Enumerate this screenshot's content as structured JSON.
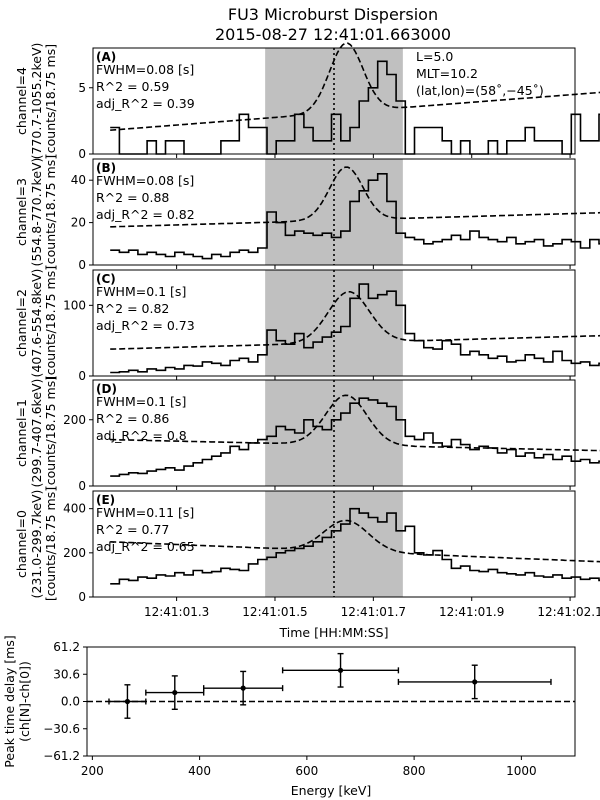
{
  "figure": {
    "title_line1": "FU3 Microburst Dispersion",
    "title_line2": "2015-08-27 12:41:01.663000"
  },
  "colors": {
    "line": "#000000",
    "shade": "#c0c0c0",
    "background": "#ffffff"
  },
  "chart_data": [
    {
      "type": "line",
      "id": "A",
      "panel_letter": "(A)",
      "ylabel": [
        "channel=4",
        "(770.7-1055.2keV)",
        "[counts/18.75 ms]"
      ],
      "annotations": [
        "FWHM=0.08 [s]",
        "R^2 = 0.59",
        "adj_R^2 = 0.39"
      ],
      "info": [
        "L=5.0",
        "MLT=10.2",
        "(lat,lon)=(58˚,−45˚)"
      ],
      "ylim": [
        0,
        8
      ],
      "yticks": [
        0,
        5
      ],
      "xlim": [
        1.13,
        2.11
      ],
      "shaded_x": [
        1.48,
        1.76
      ],
      "peak_line_x": 1.62,
      "x_start": 1.165,
      "x_step": 0.01875,
      "counts": [
        2,
        0,
        0,
        0,
        1,
        0,
        1,
        1,
        0,
        0,
        0,
        0,
        1,
        1,
        3,
        2,
        2,
        0,
        1,
        1,
        3,
        2,
        1,
        1,
        3,
        1,
        2,
        4,
        5,
        7,
        6,
        4,
        0,
        2,
        2,
        2,
        1,
        0,
        1,
        0,
        0,
        1,
        0,
        1,
        1,
        2,
        1,
        1,
        1,
        0,
        3,
        1,
        1,
        3,
        2,
        2
      ],
      "fit": {
        "a": 1.8,
        "b": 3.0,
        "amp": 5.2,
        "mu": 1.645,
        "sigma": 0.034
      }
    },
    {
      "type": "line",
      "id": "B",
      "panel_letter": "(B)",
      "ylabel": [
        "channel=3",
        "(554.8-770.7keV)",
        "[counts/18.75 ms]"
      ],
      "annotations": [
        "FWHM=0.08 [s]",
        "R^2 = 0.88",
        "adj_R^2 = 0.82"
      ],
      "info": [],
      "ylim": [
        0,
        50
      ],
      "yticks": [
        0,
        20,
        40
      ],
      "xlim": [
        1.13,
        2.11
      ],
      "shaded_x": [
        1.48,
        1.76
      ],
      "peak_line_x": 1.62,
      "x_start": 1.165,
      "x_step": 0.01875,
      "counts": [
        7,
        6,
        7,
        5,
        6,
        5,
        4,
        6,
        5,
        4,
        3,
        5,
        4,
        6,
        7,
        6,
        8,
        25,
        20,
        14,
        16,
        15,
        14,
        15,
        13,
        16,
        30,
        35,
        40,
        43,
        30,
        15,
        13,
        12,
        10,
        11,
        12,
        14,
        12,
        16,
        13,
        12,
        11,
        13,
        10,
        11,
        12,
        9,
        10,
        12,
        11,
        8,
        12,
        10,
        14,
        8
      ],
      "fit": {
        "a": 18,
        "b": 7,
        "amp": 25,
        "mu": 1.645,
        "sigma": 0.034
      }
    },
    {
      "type": "line",
      "id": "C",
      "panel_letter": "(C)",
      "ylabel": [
        "channel=2",
        "(407.6-554.8keV)",
        "[counts/18.75 ms]"
      ],
      "annotations": [
        "FWHM=0.1 [s]",
        "R^2 = 0.82",
        "adj_R^2 = 0.73"
      ],
      "info": [],
      "ylim": [
        0,
        150
      ],
      "yticks": [
        0,
        100
      ],
      "xlim": [
        1.13,
        2.11
      ],
      "shaded_x": [
        1.48,
        1.76
      ],
      "peak_line_x": 1.62,
      "x_start": 1.165,
      "x_step": 0.01875,
      "counts": [
        5,
        6,
        8,
        6,
        10,
        8,
        12,
        10,
        15,
        14,
        20,
        18,
        15,
        22,
        25,
        20,
        30,
        65,
        50,
        45,
        60,
        40,
        48,
        55,
        62,
        70,
        110,
        130,
        110,
        115,
        120,
        100,
        60,
        50,
        40,
        38,
        50,
        45,
        30,
        35,
        30,
        25,
        28,
        20,
        22,
        30,
        25,
        20,
        35,
        22,
        18,
        20,
        15,
        18,
        15,
        16
      ],
      "fit": {
        "a": 38,
        "b": 20,
        "amp": 72,
        "mu": 1.65,
        "sigma": 0.042
      }
    },
    {
      "type": "line",
      "id": "D",
      "panel_letter": "(D)",
      "ylabel": [
        "channel=1",
        "(299.7-407.6keV)",
        "[counts/18.75 ms]"
      ],
      "annotations": [
        "FWHM=0.1 [s]",
        "R^2 = 0.86",
        "adj_R^2 = 0.8"
      ],
      "info": [],
      "ylim": [
        0,
        320
      ],
      "yticks": [
        0,
        200
      ],
      "xlim": [
        1.13,
        2.11
      ],
      "shaded_x": [
        1.48,
        1.76
      ],
      "peak_line_x": 1.62,
      "x_start": 1.165,
      "x_step": 0.01875,
      "counts": [
        30,
        35,
        40,
        38,
        45,
        50,
        55,
        48,
        60,
        70,
        80,
        90,
        100,
        120,
        110,
        130,
        140,
        150,
        180,
        170,
        160,
        200,
        180,
        170,
        200,
        220,
        250,
        265,
        260,
        250,
        240,
        200,
        150,
        140,
        160,
        130,
        120,
        140,
        125,
        110,
        120,
        115,
        100,
        110,
        90,
        100,
        85,
        95,
        80,
        90,
        75,
        80,
        70,
        75,
        65,
        70
      ],
      "fit": {
        "a": 140,
        "b": -35,
        "amp": 150,
        "mu": 1.645,
        "sigma": 0.042
      }
    },
    {
      "type": "line",
      "id": "E",
      "panel_letter": "(E)",
      "ylabel": [
        "channel=0",
        "(231.0-299.7keV)",
        "[counts/18.75 ms]"
      ],
      "annotations": [
        "FWHM=0.11 [s]",
        "R^2 = 0.77",
        "adj_R^2 = 0.65"
      ],
      "info": [],
      "ylim": [
        0,
        480
      ],
      "yticks": [
        0,
        200,
        400
      ],
      "xlim": [
        1.13,
        2.11
      ],
      "shaded_x": [
        1.48,
        1.76
      ],
      "peak_line_x": 1.62,
      "x_start": 1.165,
      "x_step": 0.01875,
      "counts": [
        60,
        80,
        75,
        90,
        85,
        100,
        95,
        110,
        100,
        120,
        110,
        115,
        130,
        125,
        120,
        150,
        170,
        180,
        200,
        210,
        220,
        230,
        250,
        270,
        300,
        330,
        400,
        380,
        360,
        340,
        380,
        300,
        320,
        200,
        190,
        210,
        170,
        130,
        140,
        120,
        115,
        125,
        110,
        105,
        100,
        110,
        95,
        90,
        100,
        85,
        90,
        80,
        85,
        75,
        80,
        80
      ],
      "fit": {
        "a": 250,
        "b": -95,
        "amp": 140,
        "mu": 1.645,
        "sigma": 0.045
      }
    },
    {
      "type": "scatter",
      "id": "F",
      "xlabel": "Energy [keV]",
      "ylabel": [
        "Peak time delay [ms]",
        "(ch[N]-ch[0])"
      ],
      "xlim": [
        190,
        1100
      ],
      "ylim": [
        -61.2,
        61.2
      ],
      "xticks": [
        200,
        400,
        600,
        800,
        1000
      ],
      "yticks": [
        -61.2,
        -30.6,
        0.0,
        30.6,
        61.2
      ],
      "ytick_labels": [
        "−61.2",
        "−30.6",
        "0.0",
        "30.6",
        "61.2"
      ],
      "zero_line": true,
      "points": [
        {
          "x": 265.4,
          "y": 0.0,
          "xerr": [
            231.0,
            299.7
          ],
          "yerr": 18.75
        },
        {
          "x": 353.7,
          "y": 10.0,
          "xerr": [
            299.7,
            407.6
          ],
          "yerr": 18.75
        },
        {
          "x": 481.2,
          "y": 15.0,
          "xerr": [
            407.6,
            554.8
          ],
          "yerr": 18.75
        },
        {
          "x": 662.8,
          "y": 35.0,
          "xerr": [
            554.8,
            770.7
          ],
          "yerr": 18.75
        },
        {
          "x": 913.0,
          "y": 22.0,
          "xerr": [
            770.7,
            1055.2
          ],
          "yerr": 18.75
        }
      ]
    }
  ],
  "shared_axis": {
    "xticks": [
      1.3,
      1.5,
      1.7,
      1.9,
      2.1
    ],
    "xtick_labels": [
      "12:41:01.3",
      "12:41:01.5",
      "12:41:01.7",
      "12:41:01.9",
      "12:41:02.1"
    ],
    "xlabel": "Time [HH:MM:SS]"
  }
}
